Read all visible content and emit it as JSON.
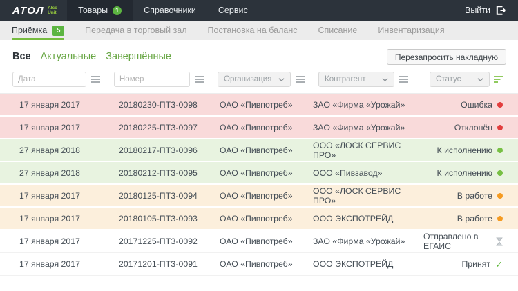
{
  "header": {
    "logo_brand": "АТОЛ",
    "logo_sub": "Alco\nUnit",
    "menu": [
      {
        "label": "Товары",
        "badge": "1",
        "active": true
      },
      {
        "label": "Справочники"
      },
      {
        "label": "Сервис"
      }
    ],
    "logout_label": "Выйти"
  },
  "subnav": {
    "items": [
      {
        "label": "Приёмка",
        "badge": "5",
        "active": true
      },
      {
        "label": "Передача в торговый зал"
      },
      {
        "label": "Постановка на баланс"
      },
      {
        "label": "Списание"
      },
      {
        "label": "Инвентаризация"
      }
    ]
  },
  "tabs": [
    {
      "label": "Все",
      "active": true
    },
    {
      "label": "Актуальные"
    },
    {
      "label": "Завершённые"
    }
  ],
  "actions": {
    "refresh_invoice": "Перезапросить накладную"
  },
  "filters": {
    "date_placeholder": "Дата",
    "number_placeholder": "Номер",
    "organization_label": "Организация",
    "contractor_label": "Контрагент",
    "status_label": "Статус"
  },
  "colors": {
    "header_bg": "#2c333b",
    "accent_green": "#5cb541",
    "nav_underline": "#76bd3f",
    "link_green": "#67a643",
    "row_red": "#f9dada",
    "row_green": "#e8f3e0",
    "row_cream": "#fcefdc",
    "status_error": "#e23e3e",
    "status_ok": "#77c044",
    "status_warn": "#f59b22"
  },
  "table": {
    "rows": [
      {
        "date": "17 января 2017",
        "number": "20180230-ПТЗ-0098",
        "organization": "ОАО «Пивпотреб»",
        "contractor": "ЗАО «Фирма «Урожай»",
        "status": "Ошибка",
        "indicator": "red-dot",
        "tint": "red"
      },
      {
        "date": "17 января 2017",
        "number": "20180225-ПТЗ-0097",
        "organization": "ОАО «Пивпотреб»",
        "contractor": "ЗАО «Фирма «Урожай»",
        "status": "Отклонён",
        "indicator": "red-dot",
        "tint": "red"
      },
      {
        "date": "27 января 2018",
        "number": "20180217-ПТЗ-0096",
        "organization": "ОАО «Пивпотреб»",
        "contractor": "ООО «ЛОСК СЕРВИС ПРО»",
        "status": "К исполнению",
        "indicator": "green-dot",
        "tint": "green"
      },
      {
        "date": "27 января 2018",
        "number": "20180212-ПТЗ-0095",
        "organization": "ОАО «Пивпотреб»",
        "contractor": "ООО «Пивзавод»",
        "status": "К исполнению",
        "indicator": "green-dot",
        "tint": "green"
      },
      {
        "date": "17 января 2017",
        "number": "20180125-ПТЗ-0094",
        "organization": "ОАО «Пивпотреб»",
        "contractor": "ООО «ЛОСК СЕРВИС ПРО»",
        "status": "В работе",
        "indicator": "orange-dot",
        "tint": "cream"
      },
      {
        "date": "17 января 2017",
        "number": "20180105-ПТЗ-0093",
        "organization": "ОАО «Пивпотреб»",
        "contractor": "ООО ЭКСПОТРЕЙД",
        "status": "В работе",
        "indicator": "orange-dot",
        "tint": "cream"
      },
      {
        "date": "17 января 2017",
        "number": "20171225-ПТЗ-0092",
        "organization": "ОАО «Пивпотреб»",
        "contractor": "ЗАО «Фирма «Урожай»",
        "status": "Отправлено в ЕГАИС",
        "indicator": "hourglass",
        "tint": "white"
      },
      {
        "date": "17 января 2017",
        "number": "20171201-ПТЗ-0091",
        "organization": "ОАО «Пивпотреб»",
        "contractor": "ООО ЭКСПОТРЕЙД",
        "status": "Принят",
        "indicator": "check",
        "tint": "white"
      }
    ]
  }
}
